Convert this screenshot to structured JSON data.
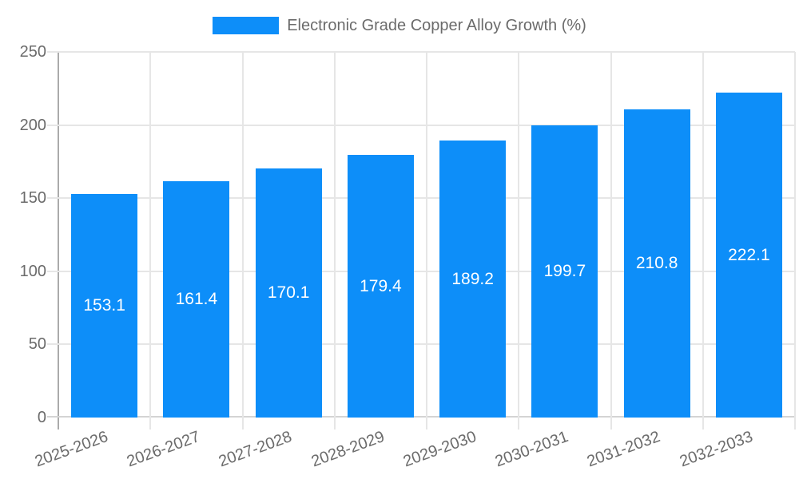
{
  "chart_data": {
    "type": "bar",
    "title": "Electronic Grade Copper Alloy Growth (%)",
    "categories": [
      "2025-2026",
      "2026-2027",
      "2027-2028",
      "2028-2029",
      "2029-2030",
      "2030-2031",
      "2031-2032",
      "2032-2033"
    ],
    "values": [
      153.1,
      161.4,
      170.1,
      179.4,
      189.2,
      199.7,
      210.8,
      222.1
    ],
    "value_labels": [
      "153.1",
      "161.4",
      "170.1",
      "179.4",
      "189.2",
      "199.7",
      "210.8",
      "222.1"
    ],
    "xlabel": "",
    "ylabel": "",
    "ylim": [
      0,
      250
    ],
    "yticks": [
      0,
      50,
      100,
      150,
      200,
      250
    ],
    "grid": true,
    "legend_position": "top",
    "bar_color": "#0d8ef9",
    "value_label_color": "#ffffff",
    "axis_text_color": "#6b6b6b",
    "grid_color": "#e6e6e6",
    "axis_line_color": "#ababab"
  }
}
